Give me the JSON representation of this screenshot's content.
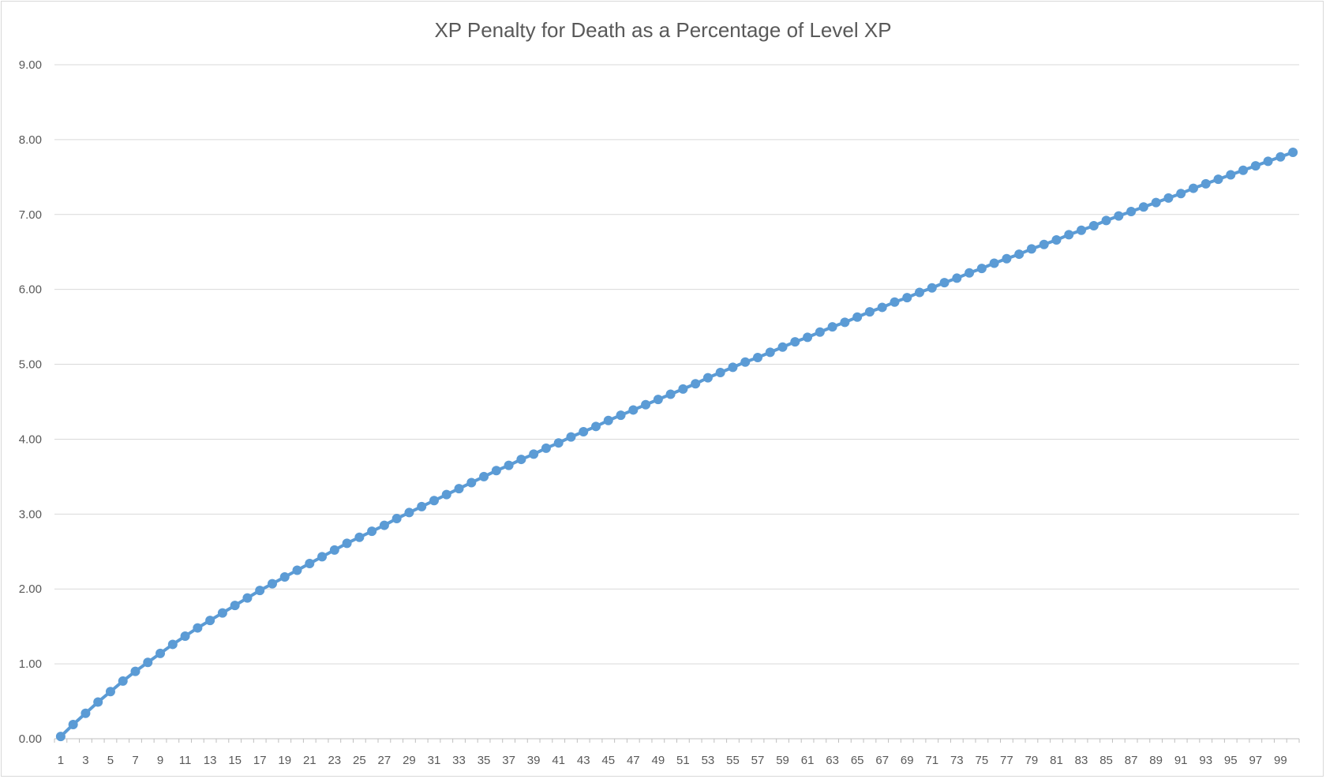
{
  "chart_data": {
    "type": "line",
    "title": "XP Penalty for Death as a Percentage of Level XP",
    "xlabel": "",
    "ylabel": "",
    "ylim": [
      0,
      9
    ],
    "y_ticks": [
      "0.00",
      "1.00",
      "2.00",
      "3.00",
      "4.00",
      "5.00",
      "6.00",
      "7.00",
      "8.00",
      "9.00"
    ],
    "x": [
      1,
      2,
      3,
      4,
      5,
      6,
      7,
      8,
      9,
      10,
      11,
      12,
      13,
      14,
      15,
      16,
      17,
      18,
      19,
      20,
      21,
      22,
      23,
      24,
      25,
      26,
      27,
      28,
      29,
      30,
      31,
      32,
      33,
      34,
      35,
      36,
      37,
      38,
      39,
      40,
      41,
      42,
      43,
      44,
      45,
      46,
      47,
      48,
      49,
      50,
      51,
      52,
      53,
      54,
      55,
      56,
      57,
      58,
      59,
      60,
      61,
      62,
      63,
      64,
      65,
      66,
      67,
      68,
      69,
      70,
      71,
      72,
      73,
      74,
      75,
      76,
      77,
      78,
      79,
      80,
      81,
      82,
      83,
      84,
      85,
      86,
      87,
      88,
      89,
      90,
      91,
      92,
      93,
      94,
      95,
      96,
      97,
      98,
      99,
      100
    ],
    "x_tick_labels": [
      "1",
      "3",
      "5",
      "7",
      "9",
      "11",
      "13",
      "15",
      "17",
      "19",
      "21",
      "23",
      "25",
      "27",
      "29",
      "31",
      "33",
      "35",
      "37",
      "39",
      "41",
      "43",
      "45",
      "47",
      "49",
      "51",
      "53",
      "55",
      "57",
      "59",
      "61",
      "63",
      "65",
      "67",
      "69",
      "71",
      "73",
      "75",
      "77",
      "79",
      "81",
      "83",
      "85",
      "87",
      "89",
      "91",
      "93",
      "95",
      "97",
      "99"
    ],
    "series": [
      {
        "color": "#5b9bd5",
        "values": [
          0.03,
          0.19,
          0.34,
          0.49,
          0.63,
          0.77,
          0.9,
          1.02,
          1.14,
          1.26,
          1.37,
          1.48,
          1.58,
          1.68,
          1.78,
          1.88,
          1.98,
          2.07,
          2.16,
          2.25,
          2.34,
          2.43,
          2.52,
          2.61,
          2.69,
          2.77,
          2.85,
          2.94,
          3.02,
          3.1,
          3.18,
          3.26,
          3.34,
          3.42,
          3.5,
          3.58,
          3.65,
          3.73,
          3.8,
          3.88,
          3.95,
          4.03,
          4.1,
          4.17,
          4.25,
          4.32,
          4.39,
          4.46,
          4.53,
          4.6,
          4.67,
          4.74,
          4.82,
          4.89,
          4.96,
          5.03,
          5.09,
          5.16,
          5.23,
          5.3,
          5.36,
          5.43,
          5.5,
          5.56,
          5.63,
          5.7,
          5.76,
          5.83,
          5.89,
          5.96,
          6.02,
          6.09,
          6.15,
          6.22,
          6.28,
          6.35,
          6.41,
          6.47,
          6.54,
          6.6,
          6.66,
          6.73,
          6.79,
          6.85,
          6.92,
          6.98,
          7.04,
          7.1,
          7.16,
          7.22,
          7.28,
          7.35,
          7.41,
          7.47,
          7.53,
          7.59,
          7.65,
          7.71,
          7.77,
          7.83
        ]
      }
    ],
    "grid": true,
    "legend": false
  }
}
